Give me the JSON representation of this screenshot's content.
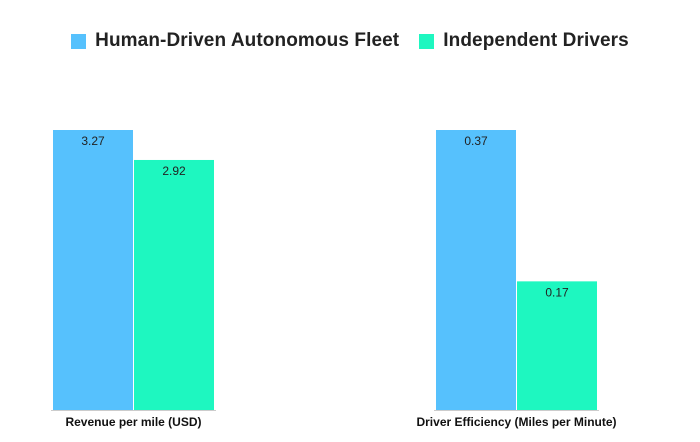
{
  "chart_data": [
    {
      "type": "bar",
      "categories": [
        "Revenue per mile (USD)"
      ],
      "series": [
        {
          "name": "Human-Driven Autonomous Fleet",
          "values": [
            3.27
          ]
        },
        {
          "name": "Independent Drivers",
          "values": [
            2.92
          ]
        }
      ],
      "ylim": [
        0,
        3.27
      ],
      "grid": false,
      "legend": "top-center"
    },
    {
      "type": "bar",
      "categories": [
        "Driver Efficiency (Miles per Minute)"
      ],
      "series": [
        {
          "name": "Human-Driven Autonomous Fleet",
          "values": [
            0.37
          ]
        },
        {
          "name": "Independent Drivers",
          "values": [
            0.17
          ]
        }
      ],
      "ylim": [
        0,
        0.37
      ],
      "grid": false,
      "legend": "top-center"
    }
  ],
  "legend": [
    {
      "name": "Human-Driven Autonomous Fleet",
      "color": "#56c1fd"
    },
    {
      "name": "Independent Drivers",
      "color": "#1ef7c0"
    }
  ]
}
